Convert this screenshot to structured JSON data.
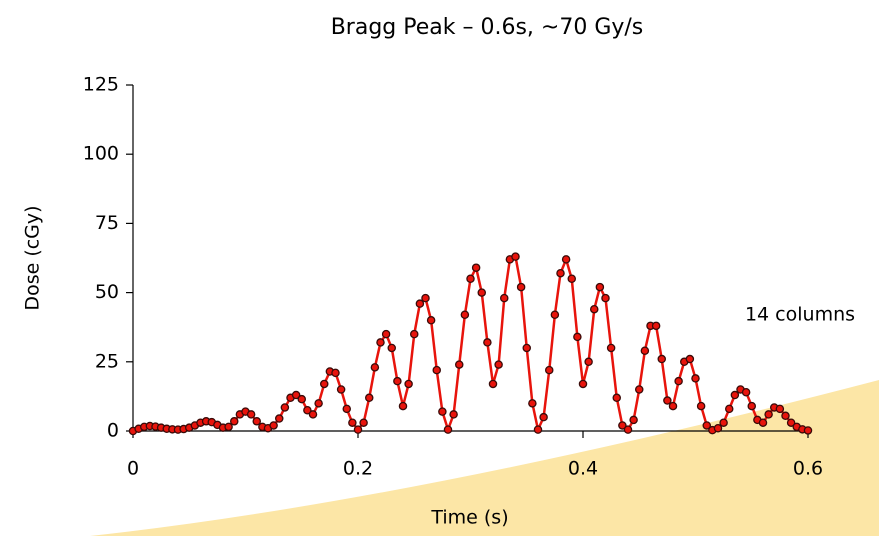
{
  "chart_data": {
    "type": "line",
    "title": "Bragg Peak – 0.6s, ~70 Gy/s",
    "x_label": "Time (s)",
    "y_label": "Dose (cGy)",
    "annotation": "14 columns",
    "xlim": [
      0,
      0.6
    ],
    "xticks": [
      0,
      0.2,
      0.4,
      0.6
    ],
    "ylim": [
      0,
      125
    ],
    "yticks": [
      0,
      25,
      50,
      75,
      100,
      125
    ],
    "x": [
      0,
      0.005,
      0.01,
      0.015,
      0.02,
      0.025,
      0.03,
      0.035,
      0.04,
      0.045,
      0.05,
      0.055,
      0.06,
      0.065,
      0.07,
      0.075,
      0.08,
      0.085,
      0.09,
      0.095,
      0.1,
      0.105,
      0.11,
      0.115,
      0.12,
      0.125,
      0.13,
      0.135,
      0.14,
      0.145,
      0.15,
      0.155,
      0.16,
      0.165,
      0.17,
      0.175,
      0.18,
      0.185,
      0.19,
      0.195,
      0.2,
      0.205,
      0.21,
      0.215,
      0.22,
      0.225,
      0.23,
      0.235,
      0.24,
      0.245,
      0.25,
      0.255,
      0.26,
      0.265,
      0.27,
      0.275,
      0.28,
      0.285,
      0.29,
      0.295,
      0.3,
      0.305,
      0.31,
      0.315,
      0.32,
      0.325,
      0.33,
      0.335,
      0.34,
      0.345,
      0.35,
      0.355,
      0.36,
      0.365,
      0.37,
      0.375,
      0.38,
      0.385,
      0.39,
      0.395,
      0.4,
      0.405,
      0.41,
      0.415,
      0.42,
      0.425,
      0.43,
      0.435,
      0.44,
      0.445,
      0.45,
      0.455,
      0.46,
      0.465,
      0.47,
      0.475,
      0.48,
      0.485,
      0.49,
      0.495,
      0.5,
      0.505,
      0.51,
      0.515,
      0.52,
      0.525,
      0.53,
      0.535,
      0.54,
      0.545,
      0.55,
      0.555,
      0.56,
      0.565,
      0.57,
      0.575,
      0.58,
      0.585,
      0.59,
      0.595,
      0.6
    ],
    "series": [
      {
        "color": "#e8140c",
        "marker_edge_color": "#3a0a08",
        "values": [
          0,
          0.8,
          1.5,
          1.8,
          1.6,
          1.2,
          0.8,
          0.6,
          0.5,
          0.7,
          1.2,
          2,
          3,
          3.5,
          3.2,
          2.2,
          1.2,
          1.5,
          3.5,
          6,
          7,
          6,
          3.5,
          1.5,
          1,
          2,
          4.5,
          8.5,
          12,
          13,
          11.5,
          7.5,
          6,
          10,
          17,
          21.5,
          21,
          15,
          8,
          3,
          0.5,
          3,
          12,
          23,
          32,
          35,
          30,
          18,
          9,
          17,
          35,
          46,
          48,
          40,
          22,
          7,
          0.5,
          6,
          24,
          42,
          55,
          59,
          50,
          32,
          17,
          24,
          48,
          62,
          63,
          52,
          30,
          10,
          0.5,
          5,
          22,
          42,
          57,
          62,
          55,
          34,
          17,
          25,
          44,
          52,
          48,
          30,
          12,
          2,
          0.5,
          4,
          15,
          29,
          38,
          38,
          26,
          11,
          9,
          18,
          25,
          26,
          19,
          9,
          2,
          0.3,
          1,
          3,
          8,
          13,
          15,
          14,
          9,
          4,
          3,
          6,
          8.5,
          8,
          5.5,
          3,
          1.5,
          0.6,
          0.2
        ]
      }
    ]
  }
}
